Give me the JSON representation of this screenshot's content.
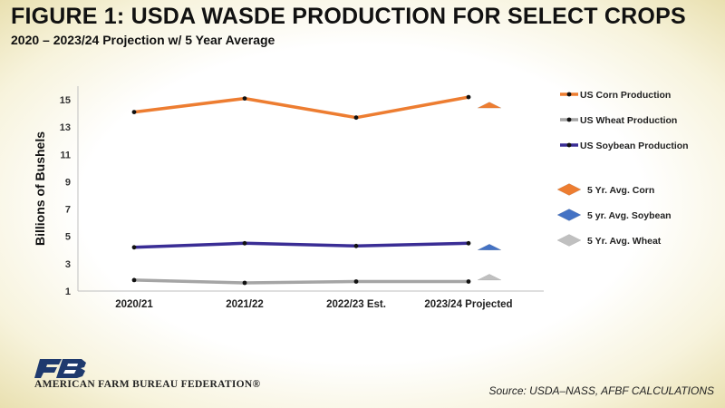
{
  "header": {
    "title": "FIGURE  1: USDA WASDE PRODUCTION FOR SELECT CROPS",
    "subtitle": "2020 – 2023/24 Projection w/ 5 Year Average"
  },
  "footer": {
    "org_name": "AMERICAN FARM BUREAU FEDERATION®",
    "source": "Source: USDA–NASS, AFBF CALCULATIONS"
  },
  "chart_data": {
    "type": "line",
    "ylabel": "Billions of Bushels",
    "xlabel": "",
    "ylim": [
      1,
      16
    ],
    "yticks": [
      1,
      3,
      5,
      7,
      9,
      11,
      13,
      15
    ],
    "categories": [
      "2020/21",
      "2021/22",
      "2022/23 Est.",
      "2023/24 Projected"
    ],
    "series": [
      {
        "name": "US Corn Production",
        "values": [
          14.1,
          15.1,
          13.7,
          15.2
        ],
        "color": "#ed7d31"
      },
      {
        "name": "US Wheat Production",
        "values": [
          1.8,
          1.6,
          1.7,
          1.7
        ],
        "color": "#a5a5a5"
      },
      {
        "name": "US Soybean Production",
        "values": [
          4.2,
          4.5,
          4.3,
          4.5
        ],
        "color": "#3a2d95"
      }
    ],
    "averages": [
      {
        "name": "5 Yr. Avg. Corn",
        "value": 14.4,
        "color": "#ed7d31"
      },
      {
        "name": "5 yr. Avg. Soybean",
        "value": 4.0,
        "color": "#4472c4"
      },
      {
        "name": "5 Yr. Avg. Wheat",
        "value": 1.8,
        "color": "#c0c0c0"
      }
    ],
    "grid": false,
    "legend_position": "right"
  }
}
